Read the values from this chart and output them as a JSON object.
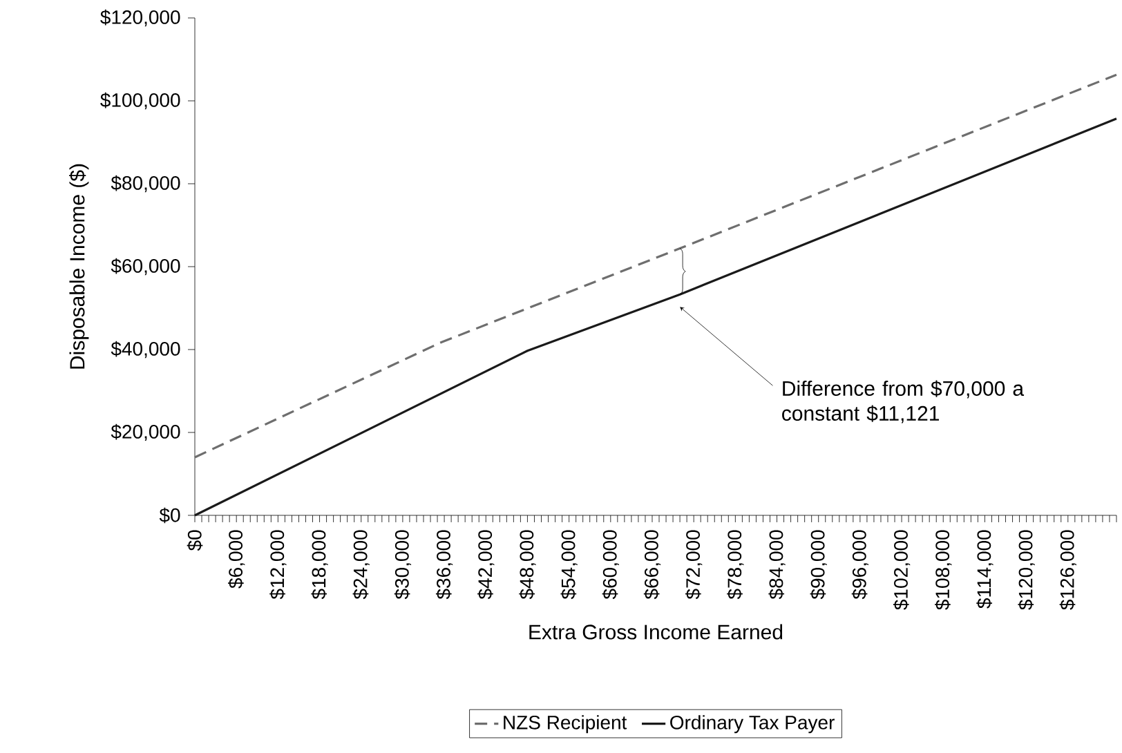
{
  "chart_data": {
    "type": "line",
    "xlabel": "Extra Gross Income Earned",
    "ylabel": "Disposable Income ($)",
    "xlim": [
      0,
      133000
    ],
    "ylim": [
      0,
      120000
    ],
    "yticks": [
      {
        "value": 0,
        "label": "$0"
      },
      {
        "value": 20000,
        "label": "$20,000"
      },
      {
        "value": 40000,
        "label": "$40,000"
      },
      {
        "value": 60000,
        "label": "$60,000"
      },
      {
        "value": 80000,
        "label": "$80,000"
      },
      {
        "value": 100000,
        "label": "$100,000"
      },
      {
        "value": 120000,
        "label": "$120,000"
      }
    ],
    "xticks": [
      {
        "value": 0,
        "label": "$0"
      },
      {
        "value": 1000,
        "label": null
      },
      {
        "value": 2000,
        "label": null
      },
      {
        "value": 3000,
        "label": null
      },
      {
        "value": 4000,
        "label": null
      },
      {
        "value": 5000,
        "label": null
      },
      {
        "value": 6000,
        "label": "$6,000"
      },
      {
        "value": 7000,
        "label": null
      },
      {
        "value": 8000,
        "label": null
      },
      {
        "value": 9000,
        "label": null
      },
      {
        "value": 10000,
        "label": null
      },
      {
        "value": 11000,
        "label": null
      },
      {
        "value": 12000,
        "label": "$12,000"
      },
      {
        "value": 13000,
        "label": null
      },
      {
        "value": 14000,
        "label": null
      },
      {
        "value": 15000,
        "label": null
      },
      {
        "value": 16000,
        "label": null
      },
      {
        "value": 17000,
        "label": null
      },
      {
        "value": 18000,
        "label": "$18,000"
      },
      {
        "value": 19000,
        "label": null
      },
      {
        "value": 20000,
        "label": null
      },
      {
        "value": 21000,
        "label": null
      },
      {
        "value": 22000,
        "label": null
      },
      {
        "value": 23000,
        "label": null
      },
      {
        "value": 24000,
        "label": "$24,000"
      },
      {
        "value": 25000,
        "label": null
      },
      {
        "value": 26000,
        "label": null
      },
      {
        "value": 27000,
        "label": null
      },
      {
        "value": 28000,
        "label": null
      },
      {
        "value": 29000,
        "label": null
      },
      {
        "value": 30000,
        "label": "$30,000"
      },
      {
        "value": 31000,
        "label": null
      },
      {
        "value": 32000,
        "label": null
      },
      {
        "value": 33000,
        "label": null
      },
      {
        "value": 34000,
        "label": null
      },
      {
        "value": 35000,
        "label": null
      },
      {
        "value": 36000,
        "label": "$36,000"
      },
      {
        "value": 37000,
        "label": null
      },
      {
        "value": 38000,
        "label": null
      },
      {
        "value": 39000,
        "label": null
      },
      {
        "value": 40000,
        "label": null
      },
      {
        "value": 41000,
        "label": null
      },
      {
        "value": 42000,
        "label": "$42,000"
      },
      {
        "value": 43000,
        "label": null
      },
      {
        "value": 44000,
        "label": null
      },
      {
        "value": 45000,
        "label": null
      },
      {
        "value": 46000,
        "label": null
      },
      {
        "value": 47000,
        "label": null
      },
      {
        "value": 48000,
        "label": "$48,000"
      },
      {
        "value": 49000,
        "label": null
      },
      {
        "value": 50000,
        "label": null
      },
      {
        "value": 51000,
        "label": null
      },
      {
        "value": 52000,
        "label": null
      },
      {
        "value": 53000,
        "label": null
      },
      {
        "value": 54000,
        "label": "$54,000"
      },
      {
        "value": 55000,
        "label": null
      },
      {
        "value": 56000,
        "label": null
      },
      {
        "value": 57000,
        "label": null
      },
      {
        "value": 58000,
        "label": null
      },
      {
        "value": 59000,
        "label": null
      },
      {
        "value": 60000,
        "label": "$60,000"
      },
      {
        "value": 61000,
        "label": null
      },
      {
        "value": 62000,
        "label": null
      },
      {
        "value": 63000,
        "label": null
      },
      {
        "value": 64000,
        "label": null
      },
      {
        "value": 65000,
        "label": null
      },
      {
        "value": 66000,
        "label": "$66,000"
      },
      {
        "value": 67000,
        "label": null
      },
      {
        "value": 68000,
        "label": null
      },
      {
        "value": 69000,
        "label": null
      },
      {
        "value": 70000,
        "label": null
      },
      {
        "value": 71000,
        "label": null
      },
      {
        "value": 72000,
        "label": "$72,000"
      },
      {
        "value": 73000,
        "label": null
      },
      {
        "value": 74000,
        "label": null
      },
      {
        "value": 75000,
        "label": null
      },
      {
        "value": 76000,
        "label": null
      },
      {
        "value": 77000,
        "label": null
      },
      {
        "value": 78000,
        "label": "$78,000"
      },
      {
        "value": 79000,
        "label": null
      },
      {
        "value": 80000,
        "label": null
      },
      {
        "value": 81000,
        "label": null
      },
      {
        "value": 82000,
        "label": null
      },
      {
        "value": 83000,
        "label": null
      },
      {
        "value": 84000,
        "label": "$84,000"
      },
      {
        "value": 85000,
        "label": null
      },
      {
        "value": 86000,
        "label": null
      },
      {
        "value": 87000,
        "label": null
      },
      {
        "value": 88000,
        "label": null
      },
      {
        "value": 89000,
        "label": null
      },
      {
        "value": 90000,
        "label": "$90,000"
      },
      {
        "value": 91000,
        "label": null
      },
      {
        "value": 92000,
        "label": null
      },
      {
        "value": 93000,
        "label": null
      },
      {
        "value": 94000,
        "label": null
      },
      {
        "value": 95000,
        "label": null
      },
      {
        "value": 96000,
        "label": "$96,000"
      },
      {
        "value": 97000,
        "label": null
      },
      {
        "value": 98000,
        "label": null
      },
      {
        "value": 99000,
        "label": null
      },
      {
        "value": 100000,
        "label": null
      },
      {
        "value": 101000,
        "label": null
      },
      {
        "value": 102000,
        "label": "$102,000"
      },
      {
        "value": 103000,
        "label": null
      },
      {
        "value": 104000,
        "label": null
      },
      {
        "value": 105000,
        "label": null
      },
      {
        "value": 106000,
        "label": null
      },
      {
        "value": 107000,
        "label": null
      },
      {
        "value": 108000,
        "label": "$108,000"
      },
      {
        "value": 109000,
        "label": null
      },
      {
        "value": 110000,
        "label": null
      },
      {
        "value": 111000,
        "label": null
      },
      {
        "value": 112000,
        "label": null
      },
      {
        "value": 113000,
        "label": null
      },
      {
        "value": 114000,
        "label": "$114,000"
      },
      {
        "value": 115000,
        "label": null
      },
      {
        "value": 116000,
        "label": null
      },
      {
        "value": 117000,
        "label": null
      },
      {
        "value": 118000,
        "label": null
      },
      {
        "value": 119000,
        "label": null
      },
      {
        "value": 120000,
        "label": "$120,000"
      },
      {
        "value": 121000,
        "label": null
      },
      {
        "value": 122000,
        "label": null
      },
      {
        "value": 123000,
        "label": null
      },
      {
        "value": 124000,
        "label": null
      },
      {
        "value": 125000,
        "label": null
      },
      {
        "value": 126000,
        "label": "$126,000"
      },
      {
        "value": 127000,
        "label": null
      },
      {
        "value": 128000,
        "label": null
      },
      {
        "value": 129000,
        "label": null
      },
      {
        "value": 130000,
        "label": null
      },
      {
        "value": 131000,
        "label": null
      },
      {
        "value": 132000,
        "label": null
      },
      {
        "value": 133000,
        "label": null
      }
    ],
    "series": [
      {
        "name": "NZS Recipient",
        "color": "#6e6e6e",
        "line_style": "dashed",
        "x": [
          0,
          35500,
          70000,
          133000
        ],
        "values": [
          14000,
          41700,
          64400,
          106300
        ]
      },
      {
        "name": "Ordinary Tax Payer",
        "color": "#1a1a1a",
        "line_style": "solid",
        "x": [
          0,
          48000,
          70000,
          133000
        ],
        "values": [
          0,
          39700,
          53300,
          95700
        ]
      }
    ],
    "annotations": [
      "Difference from $70,000 a constant $11,121"
    ],
    "legend": "bottom",
    "marker": "none",
    "grid": false
  }
}
